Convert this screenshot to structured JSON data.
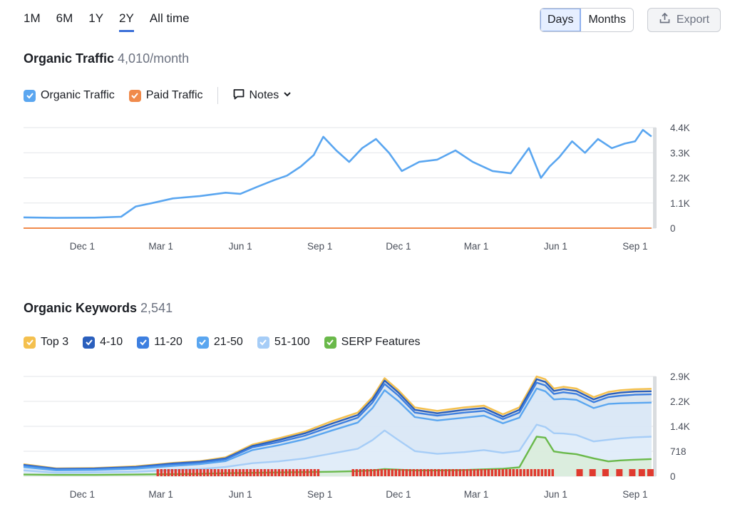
{
  "range_tabs": [
    "1M",
    "6M",
    "1Y",
    "2Y",
    "All time"
  ],
  "range_active": "2Y",
  "view_toggle": {
    "days": "Days",
    "months": "Months",
    "active": "Days"
  },
  "export_label": "Export",
  "traffic": {
    "title": "Organic Traffic",
    "subtitle": "4,010/month",
    "legend": [
      {
        "label": "Organic Traffic",
        "color": "#5aa6f0",
        "checked": true
      },
      {
        "label": "Paid Traffic",
        "color": "#f08a4b",
        "checked": true
      }
    ],
    "notes_label": "Notes"
  },
  "keywords": {
    "title": "Organic Keywords",
    "subtitle": "2,541",
    "legend": [
      {
        "label": "Top 3",
        "color": "#f4c04e"
      },
      {
        "label": "4-10",
        "color": "#2a5fbd"
      },
      {
        "label": "11-20",
        "color": "#3d7fe0"
      },
      {
        "label": "21-50",
        "color": "#5aa6f0"
      },
      {
        "label": "51-100",
        "color": "#a6cdf7"
      },
      {
        "label": "SERP Features",
        "color": "#6ab94a"
      }
    ]
  },
  "chart_data": [
    {
      "type": "line",
      "title": "Organic Traffic",
      "x_ticks": [
        "Dec 1",
        "Mar 1",
        "Jun 1",
        "Sep 1",
        "Dec 1",
        "Mar 1",
        "Jun 1",
        "Sep 1"
      ],
      "y_ticks": [
        "0",
        "1.1K",
        "2.2K",
        "3.3K",
        "4.4K"
      ],
      "ylim": [
        0,
        4400
      ],
      "x": [
        "2023-09-24",
        "2023-11-01",
        "2023-12-15",
        "2024-01-15",
        "2024-02-01",
        "2024-02-20",
        "2024-03-15",
        "2024-04-15",
        "2024-05-15",
        "2024-06-01",
        "2024-06-20",
        "2024-07-10",
        "2024-07-25",
        "2024-08-10",
        "2024-08-25",
        "2024-09-05",
        "2024-09-20",
        "2024-10-05",
        "2024-10-20",
        "2024-11-05",
        "2024-11-20",
        "2024-12-05",
        "2024-12-25",
        "2025-01-15",
        "2025-02-05",
        "2025-02-25",
        "2025-03-20",
        "2025-04-10",
        "2025-05-01",
        "2025-05-15",
        "2025-05-25",
        "2025-06-05",
        "2025-06-20",
        "2025-07-05",
        "2025-07-20",
        "2025-08-05",
        "2025-08-20",
        "2025-09-01",
        "2025-09-10",
        "2025-09-20"
      ],
      "series": [
        {
          "name": "Organic Traffic",
          "color": "#5aa6f0",
          "values": [
            470,
            450,
            460,
            500,
            950,
            1100,
            1300,
            1400,
            1550,
            1500,
            1800,
            2100,
            2300,
            2700,
            3200,
            4000,
            3400,
            2900,
            3500,
            3900,
            3300,
            2500,
            2900,
            3000,
            3400,
            2900,
            2500,
            2400,
            3500,
            2200,
            2700,
            3100,
            3800,
            3300,
            3900,
            3500,
            3700,
            3800,
            4300,
            4010
          ]
        },
        {
          "name": "Paid Traffic",
          "color": "#f08a4b",
          "values": [
            0,
            0,
            0,
            0,
            0,
            0,
            0,
            0,
            0,
            0,
            0,
            0,
            0,
            0,
            0,
            0,
            0,
            0,
            0,
            0,
            0,
            0,
            0,
            0,
            0,
            0,
            0,
            0,
            0,
            0,
            0,
            0,
            0,
            0,
            0,
            0,
            0,
            0,
            0,
            0
          ]
        }
      ]
    },
    {
      "type": "area",
      "title": "Organic Keywords",
      "x_ticks": [
        "Dec 1",
        "Mar 1",
        "Jun 1",
        "Sep 1",
        "Dec 1",
        "Mar 1",
        "Jun 1",
        "Sep 1"
      ],
      "y_ticks": [
        "0",
        "718",
        "1.4K",
        "2.2K",
        "2.9K"
      ],
      "ylim": [
        0,
        2900
      ],
      "x": [
        "2023-09-24",
        "2023-11-01",
        "2023-12-15",
        "2024-02-01",
        "2024-03-15",
        "2024-04-15",
        "2024-05-15",
        "2024-06-15",
        "2024-07-15",
        "2024-08-15",
        "2024-09-15",
        "2024-10-15",
        "2024-11-01",
        "2024-11-15",
        "2024-12-01",
        "2024-12-20",
        "2025-01-15",
        "2025-02-15",
        "2025-03-10",
        "2025-04-01",
        "2025-04-20",
        "2025-05-10",
        "2025-05-20",
        "2025-05-30",
        "2025-06-10",
        "2025-06-25",
        "2025-07-15",
        "2025-08-01",
        "2025-08-15",
        "2025-09-01",
        "2025-09-20"
      ],
      "series": [
        {
          "name": "Top 3",
          "color": "#f4c04e",
          "values": [
            350,
            230,
            240,
            290,
            390,
            440,
            550,
            920,
            1100,
            1300,
            1600,
            1850,
            2300,
            2850,
            2500,
            2000,
            1900,
            2000,
            2050,
            1800,
            2000,
            2900,
            2820,
            2550,
            2600,
            2550,
            2300,
            2450,
            2500,
            2530,
            2541
          ]
        },
        {
          "name": "4-10",
          "color": "#2a5fbd",
          "values": [
            330,
            215,
            225,
            270,
            370,
            420,
            520,
            880,
            1050,
            1250,
            1530,
            1780,
            2230,
            2780,
            2430,
            1930,
            1830,
            1930,
            1980,
            1730,
            1930,
            2820,
            2740,
            2480,
            2530,
            2480,
            2230,
            2380,
            2430,
            2460,
            2470
          ]
        },
        {
          "name": "11-20",
          "color": "#3d7fe0",
          "values": [
            310,
            200,
            210,
            250,
            340,
            390,
            490,
            840,
            990,
            1180,
            1450,
            1700,
            2140,
            2680,
            2340,
            1850,
            1760,
            1850,
            1900,
            1660,
            1850,
            2720,
            2640,
            2390,
            2440,
            2390,
            2150,
            2300,
            2340,
            2370,
            2380
          ]
        },
        {
          "name": "21-50",
          "color": "#5aa6f0",
          "values": [
            270,
            170,
            180,
            220,
            300,
            350,
            440,
            760,
            900,
            1080,
            1330,
            1560,
            1980,
            2500,
            2180,
            1720,
            1620,
            1700,
            1760,
            1540,
            1700,
            2550,
            2470,
            2230,
            2250,
            2220,
            1980,
            2100,
            2120,
            2130,
            2140
          ]
        },
        {
          "name": "51-100",
          "color": "#a6cdf7",
          "values": [
            170,
            100,
            110,
            130,
            180,
            210,
            270,
            380,
            430,
            520,
            660,
            800,
            1050,
            1330,
            1050,
            730,
            650,
            700,
            760,
            680,
            740,
            1500,
            1430,
            1250,
            1240,
            1200,
            1010,
            1060,
            1100,
            1130,
            1150
          ]
        },
        {
          "name": "SERP Features",
          "color": "#6ab94a",
          "values": [
            50,
            40,
            40,
            50,
            60,
            70,
            90,
            100,
            110,
            120,
            130,
            150,
            170,
            210,
            190,
            170,
            170,
            180,
            200,
            220,
            260,
            1150,
            1120,
            720,
            680,
            640,
            520,
            430,
            460,
            480,
            500
          ]
        }
      ],
      "annotation_markers": "red flag markers along the x-axis from Mar to Sep"
    }
  ]
}
